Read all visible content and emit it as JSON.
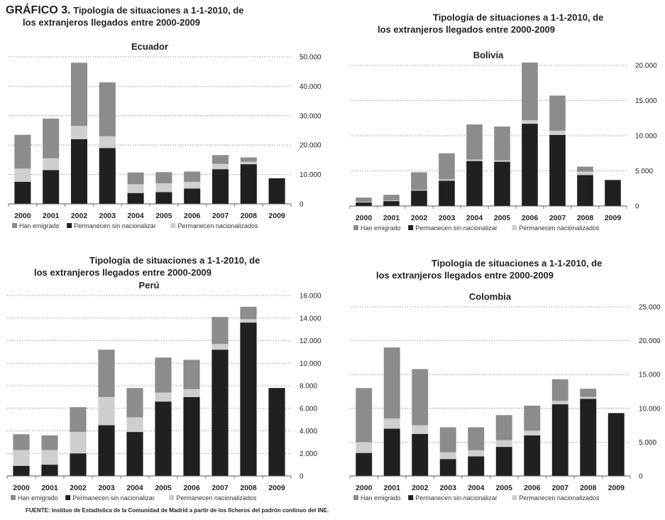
{
  "figure": {
    "label": "GRÁFICO 3.",
    "title_line1": "Tipología de situaciones a 1-1-2010, de",
    "title_line2": "los extranjeros llegados entre 2000-2009",
    "source": "FUENTE: Instituo de Estadística de la Comunidad de Madrid a partir de los ficheros del padrón continuo del INE."
  },
  "colors": {
    "Han emigrado": "#8c8c8c",
    "Permanecen sin nacionalizar": "#202020",
    "Permanecen nacionalizados": "#cfcfcf"
  },
  "chart_data": [
    {
      "type": "bar",
      "stacked": true,
      "title": "Ecuador",
      "categories": [
        "2000",
        "2001",
        "2002",
        "2003",
        "2004",
        "2005",
        "2006",
        "2007",
        "2008",
        "2009"
      ],
      "series": [
        {
          "name": "Han emigrado",
          "values": [
            11500,
            13500,
            21500,
            18300,
            4000,
            3800,
            3500,
            3000,
            1500,
            0
          ]
        },
        {
          "name": "Permanecen sin nacionalizar",
          "values": [
            7500,
            11500,
            22000,
            19000,
            3700,
            4000,
            5200,
            11800,
            13500,
            8700
          ]
        },
        {
          "name": "Permanecen nacionalizados",
          "values": [
            4500,
            4000,
            4500,
            4000,
            3000,
            3000,
            2300,
            1800,
            800,
            0
          ]
        }
      ],
      "stack_order": [
        "Permanecen sin nacionalizar",
        "Permanecen nacionalizados",
        "Han emigrado"
      ],
      "ylim": [
        0,
        50000
      ],
      "yticks": [
        0,
        10000,
        20000,
        30000,
        40000,
        50000
      ],
      "ytick_labels": [
        "0",
        "10.000",
        "20.000",
        "30.000",
        "40.000",
        "50.000"
      ],
      "y_axis_side": "right",
      "grid": true,
      "legend": "bottom"
    },
    {
      "type": "bar",
      "stacked": true,
      "title": "Bolivia",
      "categories": [
        "2000",
        "2001",
        "2002",
        "2003",
        "2004",
        "2005",
        "2006",
        "2007",
        "2008",
        "2009"
      ],
      "series": [
        {
          "name": "Han emigrado",
          "values": [
            600,
            800,
            2500,
            3700,
            5000,
            4800,
            8200,
            5000,
            700,
            0
          ]
        },
        {
          "name": "Permanecen sin nacionalizar",
          "values": [
            500,
            700,
            2200,
            3600,
            6400,
            6300,
            11700,
            10100,
            4400,
            3700
          ]
        },
        {
          "name": "Permanecen nacionalizados",
          "values": [
            100,
            100,
            100,
            200,
            200,
            200,
            500,
            600,
            500,
            0
          ]
        }
      ],
      "stack_order": [
        "Permanecen sin nacionalizar",
        "Permanecen nacionalizados",
        "Han emigrado"
      ],
      "ylim": [
        0,
        20000
      ],
      "yticks": [
        0,
        5000,
        10000,
        15000,
        20000
      ],
      "ytick_labels": [
        "0",
        "5.000",
        "10.000",
        "15.000",
        "20.000"
      ],
      "y_axis_side": "right",
      "grid": true,
      "legend": "bottom"
    },
    {
      "type": "bar",
      "stacked": true,
      "title": "Perú",
      "categories": [
        "2000",
        "2001",
        "2002",
        "2003",
        "2004",
        "2005",
        "2006",
        "2007",
        "2008",
        "2009"
      ],
      "series": [
        {
          "name": "Han emigrado",
          "values": [
            1400,
            1300,
            2200,
            4200,
            2600,
            3100,
            2600,
            2400,
            1100,
            0
          ]
        },
        {
          "name": "Permanecen sin nacionalizar",
          "values": [
            900,
            1000,
            2000,
            4500,
            3900,
            6600,
            7000,
            11200,
            13600,
            7800
          ]
        },
        {
          "name": "Permanecen nacionalizados",
          "values": [
            1400,
            1300,
            1900,
            2500,
            1300,
            800,
            700,
            500,
            300,
            0
          ]
        }
      ],
      "stack_order": [
        "Permanecen sin nacionalizar",
        "Permanecen nacionalizados",
        "Han emigrado"
      ],
      "ylim": [
        0,
        16000
      ],
      "yticks": [
        0,
        2000,
        4000,
        6000,
        8000,
        10000,
        12000,
        14000,
        16000
      ],
      "ytick_labels": [
        "0",
        "2.000",
        "4.000",
        "6.000",
        "8.000",
        "10.000",
        "12.000",
        "14.000",
        "16.000"
      ],
      "y_axis_side": "right",
      "grid": true,
      "legend": "bottom"
    },
    {
      "type": "bar",
      "stacked": true,
      "title": "Colombia",
      "categories": [
        "2000",
        "2001",
        "2002",
        "2003",
        "2004",
        "2005",
        "2006",
        "2007",
        "2008",
        "2009"
      ],
      "series": [
        {
          "name": "Han emigrado",
          "values": [
            8000,
            10500,
            8300,
            3700,
            3400,
            3700,
            3700,
            3200,
            1200,
            0
          ]
        },
        {
          "name": "Permanecen sin nacionalizar",
          "values": [
            3400,
            7000,
            6200,
            2500,
            2900,
            4300,
            6000,
            10600,
            11400,
            9300
          ]
        },
        {
          "name": "Permanecen nacionalizados",
          "values": [
            1600,
            1500,
            1300,
            1000,
            900,
            1000,
            700,
            500,
            300,
            0
          ]
        }
      ],
      "stack_order": [
        "Permanecen sin nacionalizar",
        "Permanecen nacionalizados",
        "Han emigrado"
      ],
      "ylim": [
        0,
        25000
      ],
      "yticks": [
        0,
        5000,
        10000,
        15000,
        20000,
        25000
      ],
      "ytick_labels": [
        "0",
        "5.000",
        "10.000",
        "15.000",
        "20.000",
        "25.000"
      ],
      "y_axis_side": "right",
      "grid": true,
      "legend": "bottom"
    }
  ]
}
